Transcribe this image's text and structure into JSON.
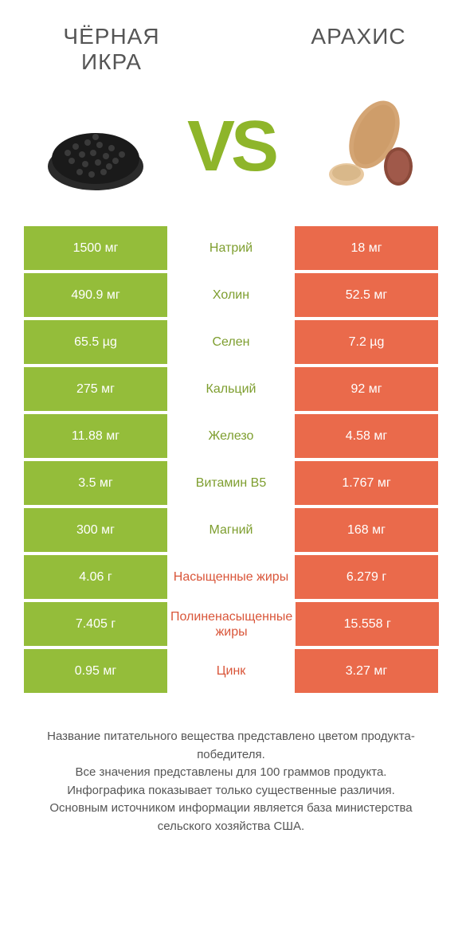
{
  "colors": {
    "left": "#94bd3a",
    "right": "#ea6a4b",
    "left_text": "#7e9e2f",
    "right_text": "#d9563a",
    "body_text": "#555555",
    "bg": "#ffffff"
  },
  "header": {
    "left_title": "ЧЁРНАЯ ИКРА",
    "right_title": "АРАХИС",
    "vs": "VS"
  },
  "rows": [
    {
      "left": "1500 мг",
      "label": "Натрий",
      "right": "18 мг",
      "winner": "left"
    },
    {
      "left": "490.9 мг",
      "label": "Холин",
      "right": "52.5 мг",
      "winner": "left"
    },
    {
      "left": "65.5 µg",
      "label": "Селен",
      "right": "7.2 µg",
      "winner": "left"
    },
    {
      "left": "275 мг",
      "label": "Кальций",
      "right": "92 мг",
      "winner": "left"
    },
    {
      "left": "11.88 мг",
      "label": "Железо",
      "right": "4.58 мг",
      "winner": "left"
    },
    {
      "left": "3.5 мг",
      "label": "Витамин B5",
      "right": "1.767 мг",
      "winner": "left"
    },
    {
      "left": "300 мг",
      "label": "Магний",
      "right": "168 мг",
      "winner": "left"
    },
    {
      "left": "4.06 г",
      "label": "Насыщенные жиры",
      "right": "6.279 г",
      "winner": "right"
    },
    {
      "left": "7.405 г",
      "label": "Полиненасыщенные жиры",
      "right": "15.558 г",
      "winner": "right"
    },
    {
      "left": "0.95 мг",
      "label": "Цинк",
      "right": "3.27 мг",
      "winner": "right"
    }
  ],
  "footer": {
    "line1": "Название питательного вещества представлено цветом продукта-победителя.",
    "line2": "Все значения представлены для 100 граммов продукта.",
    "line3": "Инфографика показывает только существенные различия.",
    "line4": "Основным источником информации является база министерства сельского хозяйства США."
  }
}
